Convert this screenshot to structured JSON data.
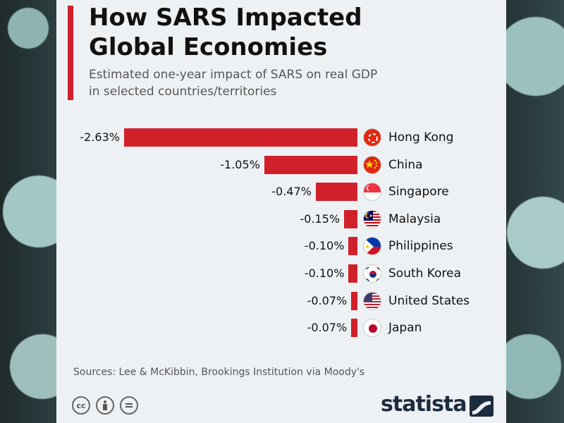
{
  "title": "How SARS Impacted\nGlobal Economies",
  "subtitle": "Estimated one-year impact of SARS on real GDP\nin selected countries/territories",
  "chart_data": {
    "type": "bar",
    "orientation": "horizontal",
    "categories": [
      "Hong Kong",
      "China",
      "Singapore",
      "Malaysia",
      "Philippines",
      "South Korea",
      "United States",
      "Japan"
    ],
    "values": [
      -2.63,
      -1.05,
      -0.47,
      -0.15,
      -0.1,
      -0.1,
      -0.07,
      -0.07
    ],
    "value_labels": [
      "-2.63%",
      "-1.05%",
      "-0.47%",
      "-0.15%",
      "-0.10%",
      "-0.10%",
      "-0.07%",
      "-0.07%"
    ],
    "bar_color": "#d0202a",
    "flags": [
      "hong-kong-flag-icon",
      "china-flag-icon",
      "singapore-flag-icon",
      "malaysia-flag-icon",
      "philippines-flag-icon",
      "south-korea-flag-icon",
      "united-states-flag-icon",
      "japan-flag-icon"
    ]
  },
  "footer": {
    "sources": "Sources: Lee & McKibbin, Brookings Institution via Moody's",
    "brand": "statista",
    "license_icons": [
      "creative-commons-icon",
      "attribution-icon",
      "no-derivatives-icon"
    ]
  }
}
